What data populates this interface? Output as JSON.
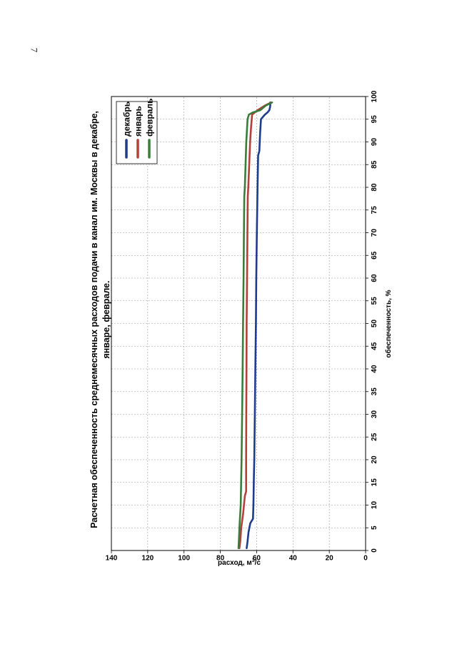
{
  "page": {
    "number": "7"
  },
  "chart_data": {
    "type": "line",
    "title_lines": [
      "Расчетная обеспеченность среднемесячных расходов подачи в канал им. Москвы в декабре,",
      "январе, феврале."
    ],
    "xlabel": "обеспеченность, %",
    "ylabel_prefix": "расход, м",
    "ylabel_sup": "3",
    "ylabel_suffix": "/с",
    "xlim": [
      0,
      100
    ],
    "ylim": [
      0,
      140
    ],
    "x_ticks": [
      0,
      5,
      10,
      15,
      20,
      25,
      30,
      35,
      40,
      45,
      50,
      55,
      60,
      65,
      70,
      75,
      80,
      85,
      90,
      95,
      100
    ],
    "y_ticks": [
      0,
      20,
      40,
      60,
      80,
      100,
      120,
      140
    ],
    "grid": true,
    "legend_position": "top-right",
    "colors": {
      "декабрь": "#1f3b8c",
      "январь": "#b3403a",
      "февраль": "#3a7d3a"
    },
    "series": [
      {
        "name": "декабрь",
        "x": [
          0.5,
          2,
          4,
          6,
          7,
          10,
          15,
          20,
          30,
          40,
          50,
          60,
          70,
          80,
          87,
          88,
          92,
          95,
          96,
          96.5,
          97,
          97.5,
          98,
          98.7
        ],
        "y": [
          65.5,
          65,
          64.5,
          63.5,
          62,
          61.8,
          61.6,
          61.3,
          61,
          60.7,
          60.4,
          60.2,
          59.9,
          59.5,
          59.2,
          58.5,
          58.1,
          57.6,
          55.5,
          54,
          53,
          52.7,
          52.5,
          52.5
        ]
      },
      {
        "name": "январь",
        "x": [
          0.5,
          2,
          5,
          8,
          12,
          13,
          20,
          30,
          40,
          50,
          60,
          70,
          78,
          80,
          85,
          90,
          93,
          96,
          97,
          98,
          98.7
        ],
        "y": [
          69.5,
          69,
          68.5,
          67.5,
          66.5,
          65.8,
          65.8,
          65.7,
          65.6,
          65.5,
          65.3,
          65.1,
          64.9,
          64.6,
          64.1,
          63.6,
          63.1,
          62.5,
          59.5,
          55.5,
          52
        ]
      },
      {
        "name": "февраль",
        "x": [
          0.5,
          2,
          5,
          10,
          20,
          30,
          40,
          50,
          60,
          70,
          78,
          80,
          90,
          95,
          96,
          96.5,
          97,
          98,
          98.7
        ],
        "y": [
          70,
          69.8,
          69.5,
          68.8,
          68.3,
          68,
          67.7,
          67.5,
          67.2,
          67,
          66.8,
          66.5,
          65.7,
          65,
          64.3,
          62,
          58,
          55,
          51.5
        ]
      }
    ]
  }
}
